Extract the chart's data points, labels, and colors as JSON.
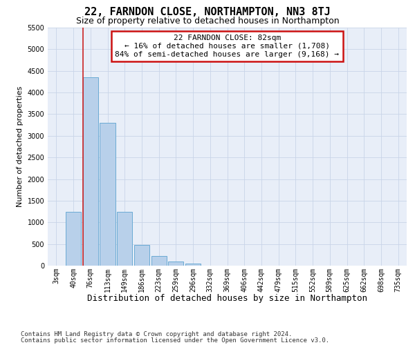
{
  "title": "22, FARNDON CLOSE, NORTHAMPTON, NN3 8TJ",
  "subtitle": "Size of property relative to detached houses in Northampton",
  "xlabel": "Distribution of detached houses by size in Northampton",
  "ylabel": "Number of detached properties",
  "categories": [
    "3sqm",
    "40sqm",
    "76sqm",
    "113sqm",
    "149sqm",
    "186sqm",
    "223sqm",
    "259sqm",
    "296sqm",
    "332sqm",
    "369sqm",
    "406sqm",
    "442sqm",
    "479sqm",
    "515sqm",
    "552sqm",
    "589sqm",
    "625sqm",
    "662sqm",
    "698sqm",
    "735sqm"
  ],
  "values": [
    0,
    1250,
    4350,
    3300,
    1250,
    475,
    220,
    90,
    55,
    0,
    0,
    0,
    0,
    0,
    0,
    0,
    0,
    0,
    0,
    0,
    0
  ],
  "bar_color": "#b8d0ea",
  "bar_edge_color": "#6aaad4",
  "grid_color": "#c8d4e8",
  "background_color": "#e8eef8",
  "vline_x_index": 2,
  "vline_color": "#cc2222",
  "annotation_line1": "22 FARNDON CLOSE: 82sqm",
  "annotation_line2": "← 16% of detached houses are smaller (1,708)",
  "annotation_line3": "84% of semi-detached houses are larger (9,168) →",
  "annotation_box_edgecolor": "#cc1111",
  "annotation_box_facecolor": "#ffffff",
  "ylim_max": 5500,
  "yticks": [
    0,
    500,
    1000,
    1500,
    2000,
    2500,
    3000,
    3500,
    4000,
    4500,
    5000,
    5500
  ],
  "footer_line1": "Contains HM Land Registry data © Crown copyright and database right 2024.",
  "footer_line2": "Contains public sector information licensed under the Open Government Licence v3.0.",
  "title_fontsize": 11,
  "subtitle_fontsize": 9,
  "xlabel_fontsize": 9,
  "ylabel_fontsize": 8,
  "tick_fontsize": 7,
  "footer_fontsize": 6.5,
  "ann_fontsize": 8
}
